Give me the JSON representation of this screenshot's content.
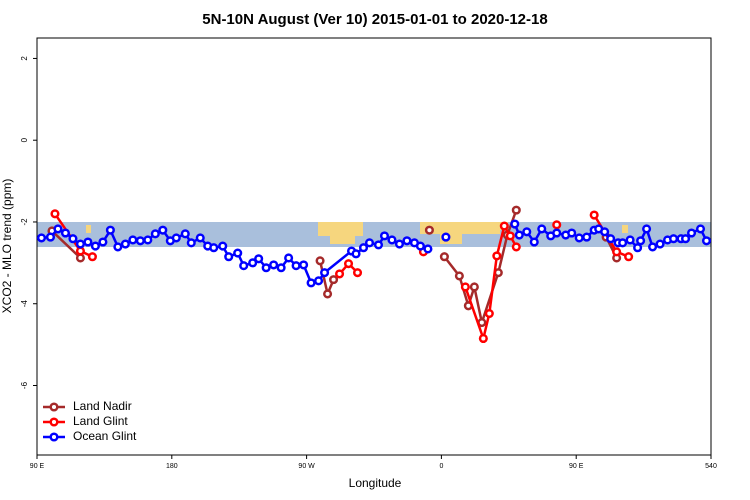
{
  "chart_data": {
    "type": "line",
    "title": "5N-10N August (Ver 10)   2015-01-01 to 2020-12-18",
    "xlabel": "Longitude",
    "ylabel": "XCO2 - MLO trend (ppm)",
    "xlim": [
      90,
      540
    ],
    "xticks": [
      {
        "value": 90,
        "label": "90 E"
      },
      180,
      {
        "value": 270,
        "label": "90 W"
      },
      {
        "value": 360,
        "label": "0"
      },
      {
        "value": 450,
        "label": "90 E"
      },
      540
    ],
    "ylim": [
      -7.7,
      2.5
    ],
    "yticks": [
      -6,
      -4,
      -2,
      0,
      2
    ],
    "legend": "bottom-left",
    "series": [
      {
        "name": "Land Nadir",
        "color": "#a52a2a",
        "x": [
          100,
          119,
          null,
          279,
          284,
          288,
          null,
          352,
          null,
          362,
          372,
          378,
          382,
          387,
          398,
          404,
          410,
          null,
          470,
          477
        ],
        "values": [
          -2.22,
          -2.88,
          null,
          -2.95,
          -3.76,
          -3.41,
          null,
          -2.2,
          null,
          -2.85,
          -3.32,
          -4.05,
          -3.59,
          -4.46,
          -3.24,
          -2.32,
          -1.71,
          null,
          -2.37,
          -2.88
        ]
      },
      {
        "name": "Land Glint",
        "color": "#ff0000",
        "x": [
          102,
          119,
          127,
          null,
          292,
          298,
          304,
          null,
          348,
          null,
          376,
          388,
          392,
          397,
          402,
          406,
          410,
          null,
          437,
          null,
          462,
          477,
          485
        ],
        "values": [
          -1.8,
          -2.71,
          -2.85,
          null,
          -3.27,
          -3.02,
          -3.24,
          null,
          -2.73,
          null,
          -3.59,
          -4.85,
          -4.24,
          -2.83,
          -2.1,
          -2.34,
          -2.61,
          null,
          -2.07,
          null,
          -1.83,
          -2.73,
          -2.85
        ]
      },
      {
        "name": "Ocean Glint",
        "color": "#0000ff",
        "x": [
          93,
          99,
          104,
          109,
          114,
          119,
          124,
          129,
          134,
          139,
          144,
          149,
          154,
          159,
          164,
          169,
          174,
          179,
          183,
          189,
          193,
          199,
          204,
          208,
          214,
          218,
          224,
          228,
          234,
          238,
          243,
          248,
          253,
          258,
          263,
          268,
          273,
          278,
          282,
          300,
          303,
          308,
          312,
          318,
          322,
          327,
          332,
          337,
          342,
          346,
          351,
          null,
          363,
          null,
          409,
          412,
          417,
          422,
          427,
          433,
          437,
          443,
          447,
          452,
          457,
          462,
          465,
          469,
          473,
          478,
          481,
          486,
          491,
          493,
          497,
          501,
          506,
          511,
          515,
          520,
          523,
          527,
          533,
          537
        ],
        "values": [
          -2.39,
          -2.37,
          -2.17,
          -2.27,
          -2.41,
          -2.54,
          -2.49,
          -2.59,
          -2.49,
          -2.2,
          -2.61,
          -2.54,
          -2.44,
          -2.46,
          -2.44,
          -2.29,
          -2.2,
          -2.46,
          -2.39,
          -2.29,
          -2.51,
          -2.39,
          -2.59,
          -2.63,
          -2.59,
          -2.85,
          -2.76,
          -3.07,
          -3.0,
          -2.9,
          -3.12,
          -3.05,
          -3.12,
          -2.88,
          -3.07,
          -3.05,
          -3.49,
          -3.44,
          -3.24,
          -2.71,
          -2.78,
          -2.63,
          -2.51,
          -2.56,
          -2.34,
          -2.44,
          -2.54,
          -2.46,
          -2.51,
          -2.59,
          -2.66,
          null,
          -2.37,
          null,
          -2.05,
          -2.32,
          -2.24,
          -2.49,
          -2.17,
          -2.34,
          -2.27,
          -2.32,
          -2.27,
          -2.39,
          -2.37,
          -2.2,
          -2.17,
          -2.24,
          -2.41,
          -2.51,
          -2.51,
          -2.44,
          -2.63,
          -2.46,
          -2.17,
          -2.61,
          -2.54,
          -2.44,
          -2.41,
          -2.41,
          -2.41,
          -2.27,
          -2.17,
          -2.46
        ]
      }
    ]
  }
}
